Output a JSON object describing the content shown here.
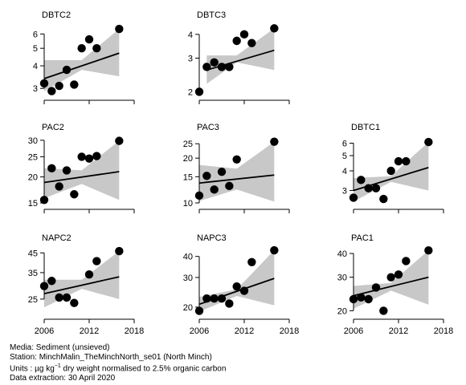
{
  "chart_data": [
    {
      "type": "scatter",
      "title": "DBTC2",
      "scale": "log",
      "ylim": [
        2.8,
        6.6
      ],
      "yticks": [
        3,
        4,
        5,
        6
      ],
      "xticks": [],
      "xlim": [
        2006,
        2018
      ],
      "x": [
        2006,
        2007,
        2008,
        2009,
        2010,
        2011,
        2012,
        2013,
        2016
      ],
      "y": [
        3.2,
        2.9,
        3.1,
        3.8,
        3.15,
        5.0,
        5.6,
        5.0,
        6.4
      ],
      "trend": {
        "x": [
          2006,
          2016
        ],
        "y": [
          3.4,
          4.7
        ]
      },
      "band": {
        "x": [
          2006,
          2011,
          2016
        ],
        "lower": [
          2.9,
          3.8,
          3.5
        ],
        "upper": [
          4.3,
          4.3,
          6.4
        ]
      }
    },
    {
      "type": "scatter",
      "title": "DBTC3",
      "scale": "log",
      "ylim": [
        1.95,
        4.4
      ],
      "yticks": [
        2,
        3,
        4
      ],
      "xticks": [],
      "xlim": [
        2006,
        2018
      ],
      "x": [
        2006,
        2007,
        2008,
        2009,
        2010,
        2011,
        2012,
        2013,
        2016
      ],
      "y": [
        2.0,
        2.7,
        2.85,
        2.7,
        2.7,
        3.7,
        4.0,
        3.6,
        4.3
      ],
      "trend": {
        "x": [
          2007,
          2016
        ],
        "y": [
          2.6,
          3.3
        ]
      },
      "band": {
        "x": [
          2007,
          2011,
          2016
        ],
        "lower": [
          2.2,
          2.85,
          2.6
        ],
        "upper": [
          3.1,
          3.1,
          4.3
        ]
      }
    },
    {
      "type": "scatter",
      "title": "PAC2",
      "scale": "log",
      "ylim": [
        15,
        30.5
      ],
      "yticks": [
        15,
        20,
        25,
        30
      ],
      "xticks": [],
      "xlim": [
        2006,
        2018
      ],
      "x": [
        2006,
        2007,
        2008,
        2009,
        2010,
        2011,
        2012,
        2013,
        2016
      ],
      "y": [
        15.5,
        22,
        18,
        21.5,
        16.5,
        25,
        24.5,
        25.2,
        29.8
      ],
      "trend": {
        "x": [
          2006,
          2016
        ],
        "y": [
          18.8,
          21.2
        ]
      },
      "band": {
        "x": [
          2006,
          2011,
          2016
        ],
        "lower": [
          15.8,
          18.5,
          15.5
        ],
        "upper": [
          22.0,
          21.5,
          29.8
        ]
      }
    },
    {
      "type": "scatter",
      "title": "PAC3",
      "scale": "log",
      "ylim": [
        10,
        27
      ],
      "yticks": [
        10,
        15,
        20,
        25
      ],
      "xticks": [],
      "xlim": [
        2006,
        2018
      ],
      "x": [
        2006,
        2007,
        2008,
        2009,
        2010,
        2011,
        2016
      ],
      "y": [
        11.2,
        15.2,
        12.3,
        16.2,
        13.0,
        19.6,
        25.8
      ],
      "trend": {
        "x": [
          2006,
          2016
        ],
        "y": [
          13.6,
          15.4
        ]
      },
      "band": {
        "x": [
          2006,
          2011,
          2016
        ],
        "lower": [
          10.3,
          12.3,
          10.2
        ],
        "upper": [
          18.0,
          17.0,
          25.8
        ]
      }
    },
    {
      "type": "scatter",
      "title": "DBTC1",
      "scale": "log",
      "ylim": [
        2.5,
        6.4
      ],
      "yticks": [
        3,
        4,
        5,
        6
      ],
      "xticks": [],
      "xlim": [
        2006,
        2018
      ],
      "x": [
        2006,
        2007,
        2008,
        2009,
        2010,
        2011,
        2012,
        2013,
        2016
      ],
      "y": [
        2.7,
        3.5,
        3.1,
        3.1,
        2.65,
        4.0,
        4.6,
        4.6,
        6.1
      ],
      "trend": {
        "x": [
          2006,
          2016
        ],
        "y": [
          3.0,
          4.2
        ]
      },
      "band": {
        "x": [
          2006,
          2011,
          2016
        ],
        "lower": [
          2.55,
          3.4,
          3.0
        ],
        "upper": [
          3.6,
          3.7,
          6.1
        ]
      }
    },
    {
      "type": "scatter",
      "title": "NAPC2",
      "scale": "log",
      "ylim": [
        21,
        47
      ],
      "yticks": [
        25,
        35,
        45
      ],
      "xticks": [],
      "xlim": [
        2006,
        2018
      ],
      "x": [
        2006,
        2007,
        2008,
        2009,
        2010,
        2012,
        2013,
        2016
      ],
      "y": [
        29.5,
        31.5,
        25.5,
        25.5,
        23.8,
        34.2,
        40.5,
        46
      ],
      "trend": {
        "x": [
          2006,
          2016
        ],
        "y": [
          26.8,
          33.2
        ]
      },
      "band": {
        "x": [
          2006,
          2011,
          2016
        ],
        "lower": [
          22.5,
          28.5,
          25.0
        ],
        "upper": [
          32.0,
          32.0,
          46
        ]
      }
    },
    {
      "type": "scatter",
      "title": "NAPC3",
      "scale": "log",
      "ylim": [
        18.5,
        44
      ],
      "yticks": [
        20,
        30,
        40
      ],
      "xticks": [],
      "xlim": [
        2006,
        2018
      ],
      "x": [
        2006,
        2007,
        2008,
        2009,
        2010,
        2011,
        2012,
        2013,
        2016
      ],
      "y": [
        19,
        22.5,
        22.5,
        22.5,
        21,
        26.5,
        25,
        37,
        43.5
      ],
      "trend": {
        "x": [
          2006,
          2016
        ],
        "y": [
          20.8,
          29.6
        ]
      },
      "band": {
        "x": [
          2006,
          2011,
          2016
        ],
        "lower": [
          18.8,
          23.3,
          20.5
        ],
        "upper": [
          23.0,
          25.5,
          43.5
        ]
      }
    },
    {
      "type": "scatter",
      "title": "PAC1",
      "scale": "log",
      "ylim": [
        19.5,
        42
      ],
      "yticks": [
        20,
        30,
        40
      ],
      "xticks": [
        2006,
        2012,
        2018
      ],
      "xlim": [
        2006,
        2018
      ],
      "x": [
        2006,
        2007,
        2008,
        2009,
        2010,
        2011,
        2012,
        2013,
        2016
      ],
      "y": [
        23,
        23.5,
        23,
        26.5,
        20,
        30,
        31,
        36.5,
        41.5
      ],
      "trend": {
        "x": [
          2006,
          2016
        ],
        "y": [
          24.0,
          30.0
        ]
      },
      "band": {
        "x": [
          2006,
          2011,
          2016
        ],
        "lower": [
          20.5,
          25.5,
          21.5
        ],
        "upper": [
          27.0,
          28.0,
          41.5
        ]
      }
    }
  ],
  "shared_xticks": [
    "2006",
    "2012",
    "2018"
  ],
  "footer": {
    "media": "Media: Sediment (unsieved)",
    "station": "Station: MinchMalin_TheMinchNorth_se01 (North Minch)",
    "units_prefix": "Units : µg kg",
    "units_exp": "−1",
    "units_suffix": " dry weight normalised to 2.5% organic carbon",
    "extraction": "Data extraction: 30 April 2020"
  },
  "colors": {
    "band": "#c8c8c8",
    "point": "#000000",
    "line": "#000000"
  }
}
